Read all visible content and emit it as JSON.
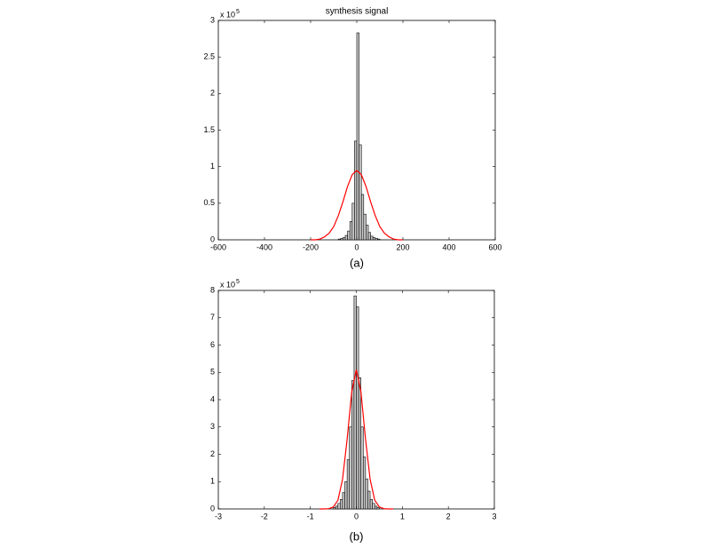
{
  "chart_data": [
    {
      "type": "histogram",
      "title": "synthesis signal",
      "caption": "(a)",
      "y_multiplier": "x 10",
      "y_multiplier_exp": "5",
      "bins": [
        -80,
        -70,
        -60,
        -50,
        -40,
        -30,
        -20,
        -10,
        0,
        10,
        20,
        30,
        40,
        50,
        60,
        70,
        80,
        90,
        100
      ],
      "values": [
        0.01,
        0.02,
        0.03,
        0.06,
        0.12,
        0.25,
        0.5,
        1.35,
        2.83,
        1.3,
        0.62,
        0.35,
        0.2,
        0.1,
        0.05,
        0.03,
        0.02,
        0.01
      ],
      "color": "#c8c8c8",
      "line": {
        "color": "#ff0000",
        "x": [
          -200,
          -180,
          -160,
          -140,
          -120,
          -100,
          -80,
          -60,
          -40,
          -20,
          0,
          20,
          40,
          60,
          80,
          100,
          120,
          140,
          160,
          180,
          200
        ],
        "values": [
          0,
          0,
          0.01,
          0.04,
          0.09,
          0.18,
          0.33,
          0.52,
          0.73,
          0.89,
          0.95,
          0.89,
          0.73,
          0.52,
          0.33,
          0.18,
          0.09,
          0.04,
          0.01,
          0,
          0
        ]
      },
      "xlim": [
        -600,
        600
      ],
      "xticks": [
        -600,
        -400,
        -200,
        0,
        200,
        400,
        600
      ],
      "ylim": [
        0,
        3
      ],
      "yticks": [
        0,
        0.5,
        1,
        1.5,
        2,
        2.5,
        3
      ]
    },
    {
      "type": "histogram",
      "caption": "(b)",
      "y_multiplier": "x 10",
      "y_multiplier_exp": "5",
      "bins": [
        -0.5,
        -0.45,
        -0.4,
        -0.35,
        -0.3,
        -0.25,
        -0.2,
        -0.15,
        -0.1,
        -0.05,
        0,
        0.05,
        0.1,
        0.15,
        0.2,
        0.25,
        0.3,
        0.35,
        0.4,
        0.45,
        0.5
      ],
      "values": [
        0.05,
        0.1,
        0.2,
        0.35,
        0.6,
        1.0,
        1.8,
        3.0,
        4.7,
        7.8,
        7.4,
        4.8,
        3.0,
        1.9,
        1.1,
        0.65,
        0.35,
        0.2,
        0.1,
        0.05
      ],
      "color": "#c8c8c8",
      "line": {
        "color": "#ff0000",
        "x": [
          -0.8,
          -0.7,
          -0.6,
          -0.5,
          -0.4,
          -0.3,
          -0.2,
          -0.1,
          0,
          0.1,
          0.2,
          0.3,
          0.4,
          0.5,
          0.6,
          0.7,
          0.8
        ],
        "values": [
          0,
          0,
          0.01,
          0.07,
          0.32,
          1.08,
          2.55,
          4.29,
          5.1,
          4.29,
          2.55,
          1.08,
          0.32,
          0.07,
          0.01,
          0,
          0
        ]
      },
      "xlim": [
        -3,
        3
      ],
      "xticks": [
        -3,
        -2,
        -1,
        0,
        1,
        2,
        3
      ],
      "ylim": [
        0,
        8
      ],
      "yticks": [
        0,
        1,
        2,
        3,
        4,
        5,
        6,
        7,
        8
      ]
    }
  ]
}
